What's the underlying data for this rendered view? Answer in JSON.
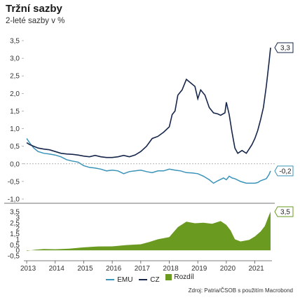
{
  "header": {
    "title": "Tržní sazby",
    "subtitle": "2-leté sazby v %"
  },
  "source": "Zdroj: Patria/ČSOB s použitím Macrobond",
  "colors": {
    "emu": "#3a93b8",
    "cz": "#16264a",
    "rozdil": "#6b9a21",
    "zero_line": "#9a9a9a"
  },
  "chart_data": [
    {
      "type": "line",
      "title": "",
      "xlabel": "",
      "ylabel": "",
      "x_ticks": [
        "2013",
        "2014",
        "2015",
        "2016",
        "2017",
        "2018",
        "2019",
        "2020",
        "2021"
      ],
      "xlim": [
        2012.9,
        2021.6
      ],
      "ylim": [
        -1.0,
        3.5
      ],
      "y_ticks": [
        "3,5",
        "3,0",
        "2,5",
        "2,0",
        "1,5",
        "1,0",
        "0,5",
        "0,0",
        "-0,5",
        "-1,0"
      ],
      "grid": false,
      "legend": "bottom",
      "series": [
        {
          "name": "CZ",
          "color_key": "cz",
          "end_label": "3,3",
          "points": [
            [
              2013.0,
              0.6
            ],
            [
              2013.1,
              0.55
            ],
            [
              2013.25,
              0.5
            ],
            [
              2013.4,
              0.45
            ],
            [
              2013.6,
              0.42
            ],
            [
              2013.8,
              0.4
            ],
            [
              2014.0,
              0.35
            ],
            [
              2014.2,
              0.3
            ],
            [
              2014.4,
              0.28
            ],
            [
              2014.6,
              0.27
            ],
            [
              2014.8,
              0.25
            ],
            [
              2015.0,
              0.22
            ],
            [
              2015.2,
              0.2
            ],
            [
              2015.4,
              0.24
            ],
            [
              2015.6,
              0.2
            ],
            [
              2015.8,
              0.18
            ],
            [
              2016.0,
              0.18
            ],
            [
              2016.2,
              0.2
            ],
            [
              2016.4,
              0.24
            ],
            [
              2016.6,
              0.2
            ],
            [
              2016.8,
              0.25
            ],
            [
              2017.0,
              0.35
            ],
            [
              2017.2,
              0.5
            ],
            [
              2017.4,
              0.72
            ],
            [
              2017.6,
              0.78
            ],
            [
              2017.8,
              0.9
            ],
            [
              2018.0,
              1.05
            ],
            [
              2018.1,
              1.4
            ],
            [
              2018.2,
              1.5
            ],
            [
              2018.3,
              1.95
            ],
            [
              2018.45,
              2.1
            ],
            [
              2018.6,
              2.4
            ],
            [
              2018.75,
              2.3
            ],
            [
              2018.9,
              2.2
            ],
            [
              2019.0,
              1.85
            ],
            [
              2019.1,
              2.1
            ],
            [
              2019.25,
              1.95
            ],
            [
              2019.4,
              1.6
            ],
            [
              2019.55,
              1.45
            ],
            [
              2019.7,
              1.42
            ],
            [
              2019.8,
              1.38
            ],
            [
              2019.95,
              1.45
            ],
            [
              2020.0,
              1.75
            ],
            [
              2020.1,
              1.4
            ],
            [
              2020.2,
              0.9
            ],
            [
              2020.3,
              0.45
            ],
            [
              2020.4,
              0.3
            ],
            [
              2020.55,
              0.38
            ],
            [
              2020.7,
              0.3
            ],
            [
              2020.8,
              0.42
            ],
            [
              2020.9,
              0.55
            ],
            [
              2021.0,
              0.72
            ],
            [
              2021.1,
              0.95
            ],
            [
              2021.2,
              1.25
            ],
            [
              2021.3,
              1.6
            ],
            [
              2021.4,
              2.2
            ],
            [
              2021.5,
              2.9
            ],
            [
              2021.55,
              3.3
            ]
          ]
        },
        {
          "name": "EMU",
          "color_key": "emu",
          "end_label": "-0,2",
          "points": [
            [
              2013.0,
              0.72
            ],
            [
              2013.1,
              0.6
            ],
            [
              2013.25,
              0.45
            ],
            [
              2013.4,
              0.35
            ],
            [
              2013.6,
              0.3
            ],
            [
              2013.8,
              0.28
            ],
            [
              2014.0,
              0.25
            ],
            [
              2014.2,
              0.2
            ],
            [
              2014.4,
              0.12
            ],
            [
              2014.6,
              0.08
            ],
            [
              2014.8,
              0.05
            ],
            [
              2015.0,
              -0.05
            ],
            [
              2015.2,
              -0.1
            ],
            [
              2015.4,
              -0.12
            ],
            [
              2015.6,
              -0.15
            ],
            [
              2015.8,
              -0.2
            ],
            [
              2016.0,
              -0.18
            ],
            [
              2016.2,
              -0.2
            ],
            [
              2016.4,
              -0.28
            ],
            [
              2016.6,
              -0.22
            ],
            [
              2016.8,
              -0.2
            ],
            [
              2017.0,
              -0.18
            ],
            [
              2017.2,
              -0.22
            ],
            [
              2017.4,
              -0.25
            ],
            [
              2017.6,
              -0.2
            ],
            [
              2017.8,
              -0.2
            ],
            [
              2018.0,
              -0.15
            ],
            [
              2018.2,
              -0.18
            ],
            [
              2018.4,
              -0.2
            ],
            [
              2018.6,
              -0.25
            ],
            [
              2018.8,
              -0.26
            ],
            [
              2019.0,
              -0.28
            ],
            [
              2019.2,
              -0.35
            ],
            [
              2019.4,
              -0.45
            ],
            [
              2019.55,
              -0.55
            ],
            [
              2019.7,
              -0.48
            ],
            [
              2019.9,
              -0.4
            ],
            [
              2020.0,
              -0.45
            ],
            [
              2020.1,
              -0.35
            ],
            [
              2020.2,
              -0.4
            ],
            [
              2020.3,
              -0.42
            ],
            [
              2020.5,
              -0.5
            ],
            [
              2020.7,
              -0.55
            ],
            [
              2020.9,
              -0.55
            ],
            [
              2021.0,
              -0.55
            ],
            [
              2021.1,
              -0.53
            ],
            [
              2021.2,
              -0.48
            ],
            [
              2021.3,
              -0.45
            ],
            [
              2021.4,
              -0.42
            ],
            [
              2021.5,
              -0.3
            ],
            [
              2021.55,
              -0.2
            ]
          ]
        }
      ]
    },
    {
      "type": "area",
      "title": "",
      "xlabel": "",
      "ylabel": "",
      "x_ticks": [
        "2013",
        "2014",
        "2015",
        "2016",
        "2017",
        "2018",
        "2019",
        "2020",
        "2021"
      ],
      "xlim": [
        2012.9,
        2021.6
      ],
      "ylim": [
        -0.5,
        3.5
      ],
      "y_ticks": [
        "3,5",
        "3",
        "2,5",
        "2",
        "1,5",
        "1",
        "0,5",
        "0",
        "-0,5"
      ],
      "series": [
        {
          "name": "Rozdíl",
          "color_key": "rozdil",
          "end_label": "3,5",
          "points": [
            [
              2013.0,
              -0.05
            ],
            [
              2013.3,
              0.05
            ],
            [
              2013.6,
              0.12
            ],
            [
              2014.0,
              0.1
            ],
            [
              2014.5,
              0.15
            ],
            [
              2015.0,
              0.27
            ],
            [
              2015.5,
              0.35
            ],
            [
              2016.0,
              0.36
            ],
            [
              2016.5,
              0.48
            ],
            [
              2017.0,
              0.55
            ],
            [
              2017.3,
              0.75
            ],
            [
              2017.6,
              1.0
            ],
            [
              2018.0,
              1.2
            ],
            [
              2018.3,
              2.1
            ],
            [
              2018.6,
              2.6
            ],
            [
              2018.9,
              2.45
            ],
            [
              2019.2,
              2.5
            ],
            [
              2019.5,
              2.4
            ],
            [
              2019.8,
              2.65
            ],
            [
              2020.0,
              2.3
            ],
            [
              2020.15,
              1.8
            ],
            [
              2020.3,
              1.0
            ],
            [
              2020.5,
              0.8
            ],
            [
              2020.8,
              0.95
            ],
            [
              2021.0,
              1.25
            ],
            [
              2021.2,
              1.7
            ],
            [
              2021.35,
              2.2
            ],
            [
              2021.5,
              3.2
            ],
            [
              2021.55,
              3.5
            ]
          ]
        }
      ]
    }
  ]
}
